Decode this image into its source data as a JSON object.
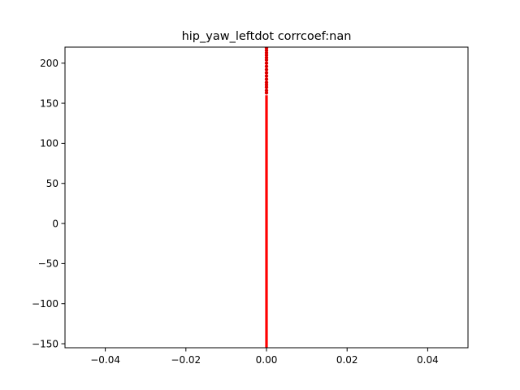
{
  "chart_data": {
    "type": "scatter",
    "title": "hip_yaw_leftdot corrcoef:nan",
    "xlabel": "",
    "ylabel": "",
    "xlim": [
      -0.05,
      0.05
    ],
    "ylim": [
      -155,
      220
    ],
    "xticks": [
      -0.04,
      -0.02,
      0.0,
      0.02,
      0.04
    ],
    "xtick_labels": [
      "−0.04",
      "−0.02",
      "0.00",
      "0.02",
      "0.04"
    ],
    "yticks": [
      -150,
      -100,
      -50,
      0,
      50,
      100,
      150,
      200
    ],
    "ytick_labels": [
      "−150",
      "−100",
      "−50",
      "0",
      "50",
      "100",
      "150",
      "200"
    ],
    "grid": false,
    "series": [
      {
        "color": "#ff0000",
        "marker_color": "#cc0000",
        "points": {
          "x_constant": 0.0,
          "y_dense_range": [
            -155,
            160
          ],
          "y_sparse": [
            163,
            166,
            170,
            173,
            176,
            180,
            184,
            188,
            192,
            196,
            200,
            204,
            207,
            210,
            213,
            216,
            219
          ]
        }
      }
    ]
  }
}
